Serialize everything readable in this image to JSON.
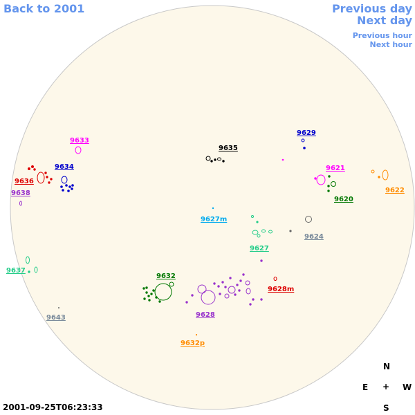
{
  "nav": {
    "back": "Back to 2001",
    "previous_day": "Previous day",
    "next_day": "Next day",
    "previous_hour": "Previous hour",
    "next_hour": "Next hour"
  },
  "timestamp": "2001-09-25T06:23:33",
  "compass": {
    "north": "N",
    "south": "S",
    "east": "E",
    "west": "W",
    "center": "+"
  },
  "disk_color": "#fdf8ea",
  "regions": [
    {
      "id": "9633",
      "color": "#ff00ff"
    },
    {
      "id": "9634",
      "color": "#0000cc"
    },
    {
      "id": "9635",
      "color": "#000000"
    },
    {
      "id": "9629",
      "color": "#0000cc"
    },
    {
      "id": "9621",
      "color": "#ff00ff"
    },
    {
      "id": "9622",
      "color": "#ff8c00"
    },
    {
      "id": "9620",
      "color": "#007700"
    },
    {
      "id": "9636",
      "color": "#dd0000"
    },
    {
      "id": "9638",
      "color": "#9933cc"
    },
    {
      "id": "9627m",
      "color": "#00aaee"
    },
    {
      "id": "9624",
      "color": "#778899"
    },
    {
      "id": "9627",
      "color": "#22cc88"
    },
    {
      "id": "9637",
      "color": "#22cc88"
    },
    {
      "id": "9632",
      "color": "#007700"
    },
    {
      "id": "9628m",
      "color": "#dd0000"
    },
    {
      "id": "9628",
      "color": "#9933cc"
    },
    {
      "id": "9643",
      "color": "#778899"
    },
    {
      "id": "9632p",
      "color": "#ff8c00"
    }
  ]
}
